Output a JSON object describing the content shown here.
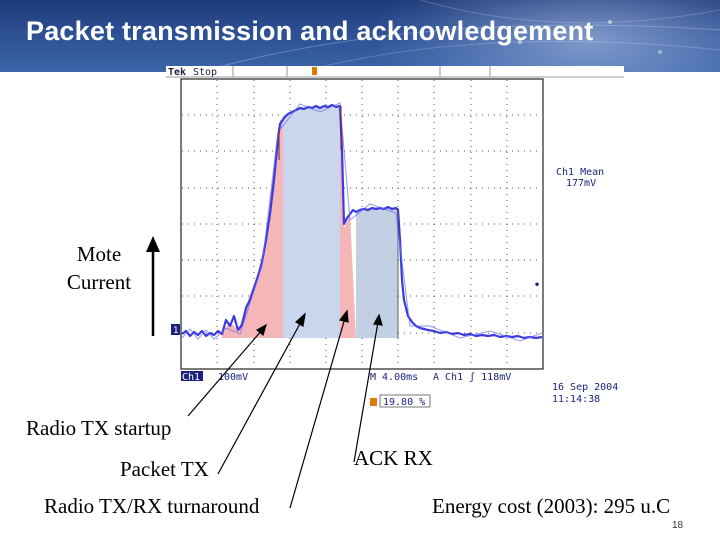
{
  "slide": {
    "title": "Packet transmission and acknowledgement",
    "slide_number": "18",
    "mote_label_line1": "Mote",
    "mote_label_line2": "Current",
    "annotations": {
      "radio_tx_startup": "Radio TX startup",
      "packet_tx": "Packet TX",
      "radio_turnaround": "Radio TX/RX turnaround",
      "ack_rx": "ACK RX",
      "energy_cost": "Energy cost (2003): 295 u.C"
    }
  },
  "scope": {
    "brand": "Tek",
    "state": "Stop",
    "ch1_mean_label": "Ch1 Mean",
    "ch1_mean_value": "177mV",
    "ch1_scale_channel": "Ch1",
    "ch1_scale_value": "100mV",
    "timebase": "M 4.00ms",
    "trigger": "A  Ch1  ʃ  118mV",
    "cursor_percent": "19.80 %",
    "date": "16 Sep  2004",
    "time": "11:14:38",
    "colors": {
      "trace": "#3a3ae0",
      "tx_fill": "#f4b6b6",
      "packet_fill": "#c9d6ee",
      "ack_fill": "#c3cfe2",
      "cursor": "#e07a00",
      "title_bg": "#2d4f93"
    }
  }
}
